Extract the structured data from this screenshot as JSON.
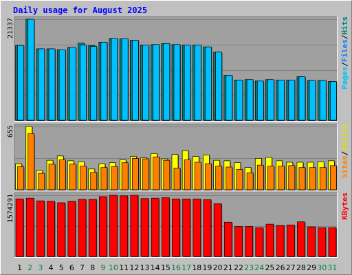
{
  "chart_data": {
    "title": "Daily usage for August 2025",
    "type": "bar",
    "days": [
      "1",
      "2",
      "3",
      "4",
      "5",
      "6",
      "7",
      "8",
      "9",
      "10",
      "11",
      "12",
      "13",
      "14",
      "15",
      "16",
      "17",
      "18",
      "19",
      "20",
      "21",
      "22",
      "23",
      "24",
      "25",
      "26",
      "27",
      "28",
      "29",
      "30",
      "31"
    ],
    "weekend_days": [
      "2",
      "3",
      "9",
      "10",
      "16",
      "17",
      "23",
      "24",
      "30",
      "31"
    ],
    "panels": [
      {
        "id": "hits",
        "max_label": "21337",
        "ymax": 21337,
        "legend": [
          "Pages",
          "/",
          "Files",
          "/",
          "Hits"
        ],
        "series": [
          {
            "name": "Hits",
            "color": "#008080",
            "values": [
              15800,
              21337,
              15100,
              15100,
              14900,
              15400,
              16300,
              15800,
              16500,
              17300,
              17200,
              16900,
              15900,
              16000,
              16200,
              16000,
              15900,
              15900,
              15500,
              14400,
              9500,
              8500,
              8600,
              8300,
              8600,
              8500,
              8500,
              9200,
              8400,
              8400,
              8200
            ]
          },
          {
            "name": "Files",
            "color": "#00c0ff",
            "values": [
              15800,
              21337,
              15100,
              15100,
              14900,
              15400,
              15900,
              15600,
              16500,
              17300,
              17200,
              16900,
              15900,
              16000,
              16200,
              16000,
              15900,
              15900,
              15500,
              14400,
              9500,
              8500,
              8600,
              8300,
              8600,
              8500,
              8500,
              9200,
              8400,
              8400,
              8200
            ]
          }
        ]
      },
      {
        "id": "visits",
        "max_label": "655",
        "ymax": 655,
        "legend": [
          "Sites",
          "/",
          "Visits"
        ],
        "series": [
          {
            "name": "Visits",
            "color": "#ffff00",
            "values": [
              270,
              655,
              200,
              305,
              350,
              300,
              290,
              215,
              270,
              280,
              310,
              345,
              330,
              375,
              320,
              365,
              405,
              345,
              360,
              305,
              300,
              280,
              230,
              325,
              335,
              300,
              285,
              285,
              285,
              290,
              300
            ]
          },
          {
            "name": "Sites",
            "color": "#ff8000",
            "values": [
              240,
              580,
              170,
              265,
              310,
              265,
              245,
              180,
              230,
              240,
              280,
              325,
              320,
              340,
              305,
              225,
              310,
              285,
              270,
              245,
              235,
              210,
              175,
              255,
              245,
              245,
              250,
              230,
              230,
              230,
              250
            ]
          }
        ]
      },
      {
        "id": "kbytes",
        "max_label": "1574291",
        "ymax": 1574291,
        "legend": [
          "KBytes"
        ],
        "series": [
          {
            "name": "KBytes",
            "color": "#ff0000",
            "values": [
              1480000,
              1500000,
              1430000,
              1420000,
              1380000,
              1420000,
              1470000,
              1470000,
              1540000,
              1574291,
              1560000,
              1574291,
              1490000,
              1500000,
              1510000,
              1480000,
              1480000,
              1480000,
              1460000,
              1360000,
              880000,
              770000,
              770000,
              740000,
              830000,
              800000,
              810000,
              890000,
              760000,
              740000,
              740000
            ]
          }
        ]
      }
    ]
  },
  "colors": {
    "background": "#c0c0c0",
    "panel": "#a0a0a0",
    "title": "#0000ff",
    "weekday_label": "#000000",
    "weekend_label": "#008040",
    "pages_legend": "#00c0ff",
    "files_legend": "#0080ff",
    "hits_legend": "#008080",
    "sites_legend": "#ff8000",
    "visits_legend": "#e0e000",
    "kbytes_legend": "#ff0000"
  }
}
